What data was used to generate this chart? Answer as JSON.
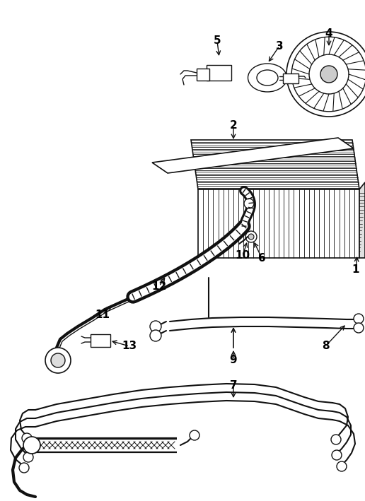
{
  "background_color": "#ffffff",
  "line_color": "#111111",
  "label_color": "#000000",
  "fig_width": 5.16,
  "fig_height": 7.09,
  "dpi": 100
}
